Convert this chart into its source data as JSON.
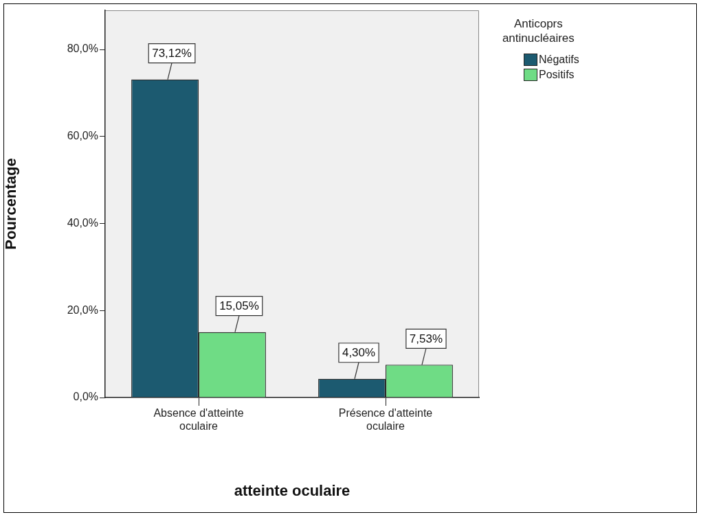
{
  "chart_data": {
    "type": "bar",
    "xlabel": "atteinte oculaire",
    "ylabel": "Pourcentage",
    "legend_title": "Anticoprs antinucléaires",
    "categories": [
      "Absence d'atteinte oculaire",
      "Présence d'atteinte oculaire"
    ],
    "series": [
      {
        "name": "Négatifs",
        "color": "#1c5a70",
        "values": [
          73.12,
          4.3
        ],
        "value_labels": [
          "73,12%",
          "4,30%"
        ]
      },
      {
        "name": "Positifs",
        "color": "#6fdc85",
        "values": [
          15.05,
          7.53
        ],
        "value_labels": [
          "15,05%",
          "7,53%"
        ]
      }
    ],
    "ylim": [
      0,
      89
    ],
    "yticks": [
      {
        "value": 0,
        "label": "0,0%"
      },
      {
        "value": 20,
        "label": "20,0%"
      },
      {
        "value": 40,
        "label": "40,0%"
      },
      {
        "value": 60,
        "label": "60,0%"
      },
      {
        "value": 80,
        "label": "80,0%"
      }
    ],
    "legend": "top right"
  }
}
